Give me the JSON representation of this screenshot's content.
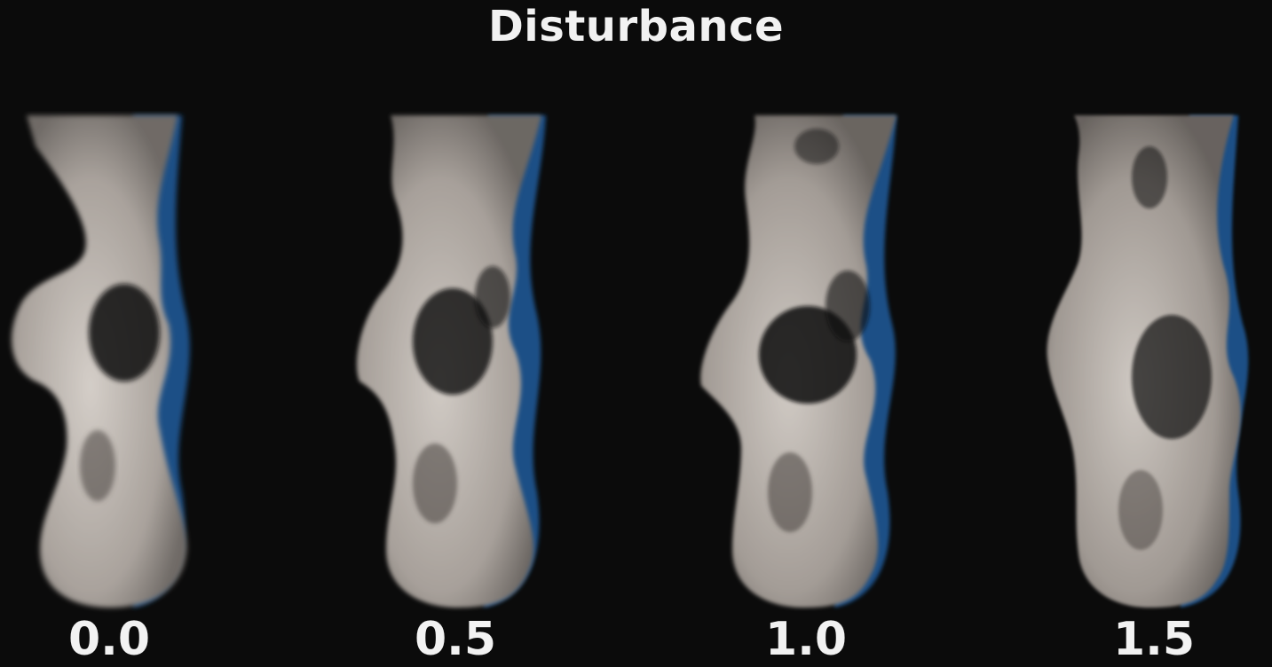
{
  "title": "Disturbance",
  "colors": {
    "background": "#0b0b0b",
    "smoke_light": "#cfc9c3",
    "smoke_mid": "#9c958f",
    "smoke_shadow": "#1d4f86",
    "text": "#f2f2f2"
  },
  "panels": [
    {
      "value": "0.0",
      "disturbance": 0.0
    },
    {
      "value": "0.5",
      "disturbance": 0.5
    },
    {
      "value": "1.0",
      "disturbance": 1.0
    },
    {
      "value": "1.5",
      "disturbance": 1.5
    }
  ]
}
